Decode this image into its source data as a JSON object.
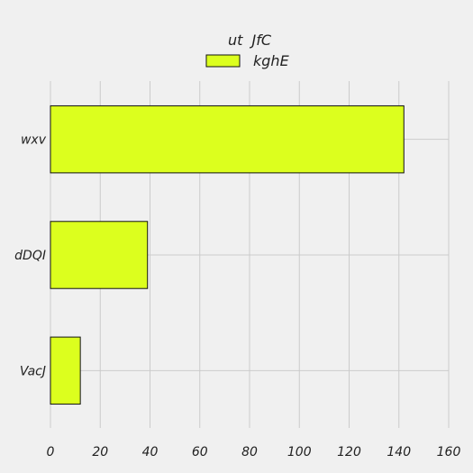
{
  "chart_data": {
    "type": "bar",
    "orientation": "horizontal",
    "legend_title": "ut  JfC",
    "categories": [
      "wxv",
      "dDQI",
      "VacJ"
    ],
    "series": [
      {
        "name": "kghE",
        "values": [
          142,
          39,
          12
        ]
      }
    ],
    "xlim": [
      0,
      160
    ],
    "xticks": [
      "0",
      "20",
      "40",
      "60",
      "80",
      "100",
      "120",
      "140",
      "160"
    ],
    "grid": true,
    "legend_position": "top-center",
    "colors": {
      "bar": "#dcff1e",
      "background": "#f0f0f0",
      "grid": "#cbcbcb"
    }
  }
}
